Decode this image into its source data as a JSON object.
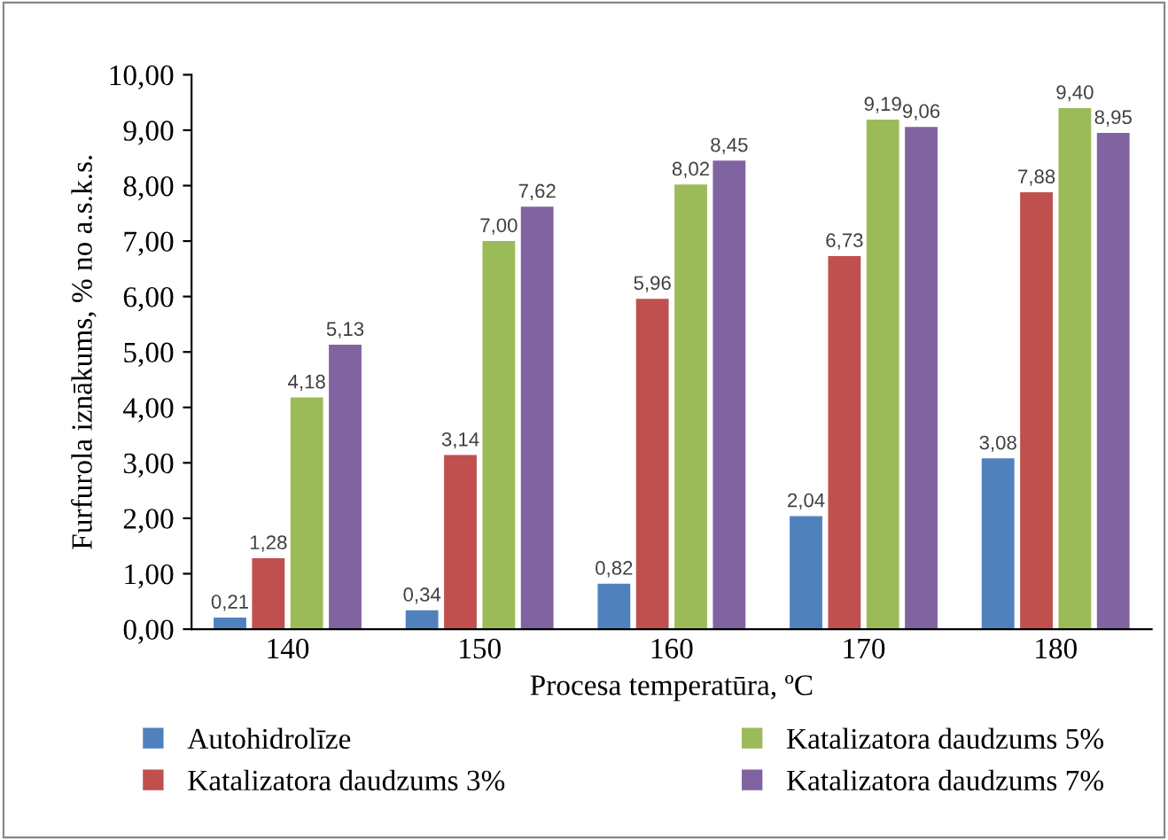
{
  "chart_data": {
    "type": "bar",
    "xlabel": "Procesa temperatūra, ºC",
    "ylabel": "Furfurola iznākums, % no a.s.k.s.",
    "categories": [
      "140",
      "150",
      "160",
      "170",
      "180"
    ],
    "series": [
      {
        "name": "Autohidrolīze",
        "color": "#4f81bd",
        "values": [
          0.21,
          0.34,
          0.82,
          2.04,
          3.08
        ],
        "value_labels": [
          "0,21",
          "0,34",
          "0,82",
          "2,04",
          "3,08"
        ]
      },
      {
        "name": "Katalizatora daudzums 3%",
        "color": "#c0504d",
        "values": [
          1.28,
          3.14,
          5.96,
          6.73,
          7.88
        ],
        "value_labels": [
          "1,28",
          "3,14",
          "5,96",
          "6,73",
          "7,88"
        ]
      },
      {
        "name": "Katalizatora daudzums 5%",
        "color": "#9bbb59",
        "values": [
          4.18,
          7.0,
          8.02,
          9.19,
          9.4
        ],
        "value_labels": [
          "4,18",
          "7,00",
          "8,02",
          "9,19",
          "9,40"
        ]
      },
      {
        "name": "Katalizatora daudzums 7%",
        "color": "#8064a2",
        "values": [
          5.13,
          7.62,
          8.45,
          9.06,
          8.95
        ],
        "value_labels": [
          "5,13",
          "7,62",
          "8,45",
          "9,06",
          "8,95"
        ]
      }
    ],
    "ylim": [
      0,
      10
    ],
    "yticks": [
      {
        "value": 0,
        "label": "0,00"
      },
      {
        "value": 1,
        "label": "1,00"
      },
      {
        "value": 2,
        "label": "2,00"
      },
      {
        "value": 3,
        "label": "3,00"
      },
      {
        "value": 4,
        "label": "4,00"
      },
      {
        "value": 5,
        "label": "5,00"
      },
      {
        "value": 6,
        "label": "6,00"
      },
      {
        "value": 7,
        "label": "7,00"
      },
      {
        "value": 8,
        "label": "8,00"
      },
      {
        "value": 9,
        "label": "9,00"
      },
      {
        "value": 10,
        "label": "10,00"
      }
    ],
    "grid": false,
    "legend": "bottom"
  }
}
